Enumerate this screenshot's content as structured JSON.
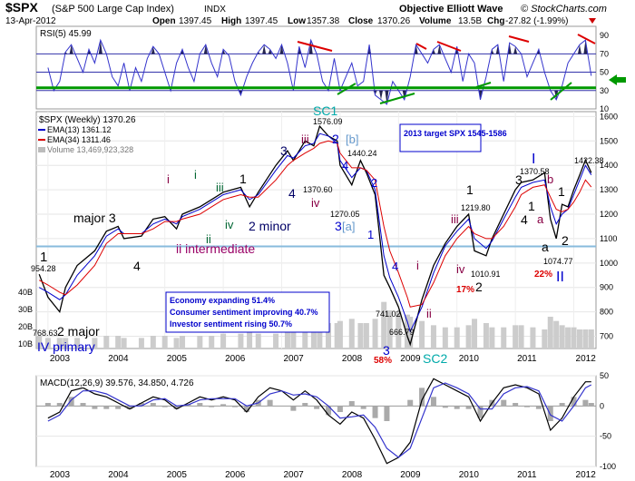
{
  "header": {
    "symbol": "$SPX",
    "name": "(S&P 500 Large Cap Index)",
    "exchange": "INDX",
    "brand": "Objective Elliott Wave",
    "source": "© StockCharts.com",
    "date": "13-Apr-2012",
    "quote": {
      "open_label": "Open",
      "open": "1397.45",
      "high_label": "High",
      "high": "1397.45",
      "low_label": "Low",
      "low": "1357.38",
      "close_label": "Close",
      "close": "1370.26",
      "volume_label": "Volume",
      "volume": "13.5B",
      "chg_label": "Chg",
      "chg": "-27.82 (-1.99%)"
    }
  },
  "chart_data": [
    {
      "type": "line",
      "panel": "rsi",
      "title": "RSI(5) 45.99",
      "ylim": [
        10,
        100
      ],
      "ticks": [
        90,
        70,
        50,
        30,
        10
      ],
      "levels": [
        70,
        50,
        30
      ],
      "green_line": 33,
      "x": [
        2003.0,
        2003.1,
        2003.2,
        2003.3,
        2003.4,
        2003.5,
        2003.6,
        2003.7,
        2003.8,
        2003.9,
        2004.0,
        2004.1,
        2004.2,
        2004.3,
        2004.4,
        2004.5,
        2004.6,
        2004.7,
        2004.8,
        2004.9,
        2005.0,
        2005.1,
        2005.2,
        2005.3,
        2005.4,
        2005.5,
        2005.6,
        2005.7,
        2005.8,
        2005.9,
        2006.0,
        2006.1,
        2006.2,
        2006.3,
        2006.4,
        2006.5,
        2006.6,
        2006.7,
        2006.8,
        2006.9,
        2007.0,
        2007.1,
        2007.2,
        2007.3,
        2007.4,
        2007.5,
        2007.6,
        2007.7,
        2007.8,
        2007.9,
        2008.0,
        2008.1,
        2008.2,
        2008.3,
        2008.4,
        2008.5,
        2008.6,
        2008.7,
        2008.8,
        2008.9,
        2009.0,
        2009.1,
        2009.2,
        2009.3,
        2009.4,
        2009.5,
        2009.6,
        2009.7,
        2009.8,
        2009.9,
        2010.0,
        2010.1,
        2010.2,
        2010.3,
        2010.4,
        2010.5,
        2010.6,
        2010.7,
        2010.8,
        2010.9,
        2011.0,
        2011.1,
        2011.2,
        2011.3,
        2011.4,
        2011.5,
        2011.6,
        2011.7,
        2011.8,
        2011.9,
        2012.0,
        2012.1,
        2012.2,
        2012.3
      ],
      "values": [
        55,
        30,
        40,
        72,
        80,
        65,
        50,
        75,
        60,
        85,
        70,
        45,
        35,
        60,
        30,
        55,
        40,
        65,
        78,
        70,
        50,
        30,
        60,
        75,
        55,
        40,
        70,
        80,
        60,
        45,
        75,
        68,
        40,
        25,
        45,
        60,
        72,
        80,
        75,
        65,
        80,
        60,
        30,
        78,
        55,
        85,
        70,
        40,
        30,
        65,
        30,
        45,
        60,
        35,
        40,
        80,
        25,
        20,
        15,
        40,
        30,
        20,
        45,
        80,
        70,
        60,
        75,
        80,
        65,
        50,
        78,
        40,
        70,
        60,
        20,
        45,
        75,
        80,
        40,
        82,
        78,
        70,
        45,
        60,
        75,
        50,
        30,
        20,
        35,
        60,
        70,
        80,
        85,
        46
      ]
    },
    {
      "type": "line",
      "panel": "price",
      "title": "$SPX (Weekly) 1370.26",
      "legend": [
        "EMA(13) 1361.12",
        "EMA(34) 1311.46",
        "Volume 13,469,923,328"
      ],
      "ylim": [
        650,
        1620
      ],
      "ticks": [
        1600,
        1500,
        1400,
        1300,
        1200,
        1100,
        1000,
        900,
        800,
        700
      ],
      "volume_ticks": [
        "40B",
        "30B",
        "20B",
        "10B"
      ],
      "hline": 1068,
      "x": [
        2002.85,
        2003.0,
        2003.2,
        2003.3,
        2003.5,
        2003.8,
        2004.0,
        2004.2,
        2004.3,
        2004.6,
        2004.8,
        2005.0,
        2005.2,
        2005.3,
        2005.6,
        2005.8,
        2006.0,
        2006.3,
        2006.45,
        2006.6,
        2006.9,
        2007.1,
        2007.2,
        2007.4,
        2007.55,
        2007.65,
        2007.8,
        2007.95,
        2008.0,
        2008.2,
        2008.35,
        2008.45,
        2008.6,
        2008.75,
        2008.85,
        2009.0,
        2009.15,
        2009.2,
        2009.4,
        2009.6,
        2009.8,
        2010.0,
        2010.2,
        2010.3,
        2010.5,
        2010.6,
        2010.8,
        2011.0,
        2011.1,
        2011.3,
        2011.5,
        2011.6,
        2011.7,
        2011.8,
        2011.9,
        2012.0,
        2012.1,
        2012.2,
        2012.3
      ],
      "values": [
        954,
        860,
        800,
        900,
        990,
        1050,
        1130,
        1150,
        1100,
        1110,
        1180,
        1190,
        1140,
        1200,
        1230,
        1260,
        1290,
        1310,
        1230,
        1290,
        1400,
        1460,
        1420,
        1500,
        1480,
        1560,
        1520,
        1500,
        1400,
        1320,
        1420,
        1370,
        1280,
        950,
        900,
        820,
        700,
        667,
        850,
        990,
        1080,
        1150,
        1200,
        1050,
        1030,
        1100,
        1200,
        1300,
        1330,
        1340,
        1370,
        1180,
        1100,
        1240,
        1230,
        1300,
        1360,
        1422,
        1370
      ],
      "ema13": [
        900,
        880,
        850,
        870,
        950,
        1030,
        1110,
        1140,
        1120,
        1120,
        1160,
        1180,
        1160,
        1190,
        1220,
        1250,
        1280,
        1300,
        1260,
        1280,
        1380,
        1440,
        1430,
        1480,
        1490,
        1530,
        1520,
        1490,
        1420,
        1350,
        1390,
        1380,
        1300,
        1030,
        940,
        860,
        760,
        720,
        820,
        960,
        1070,
        1130,
        1180,
        1100,
        1060,
        1090,
        1180,
        1270,
        1310,
        1330,
        1340,
        1230,
        1160,
        1200,
        1220,
        1280,
        1340,
        1400,
        1361
      ],
      "ema34": [
        930,
        910,
        880,
        870,
        910,
        990,
        1080,
        1120,
        1120,
        1120,
        1140,
        1170,
        1170,
        1180,
        1200,
        1230,
        1260,
        1280,
        1270,
        1270,
        1340,
        1400,
        1420,
        1450,
        1470,
        1490,
        1500,
        1490,
        1450,
        1390,
        1390,
        1380,
        1340,
        1150,
        1050,
        960,
        860,
        820,
        830,
        920,
        1030,
        1100,
        1150,
        1120,
        1100,
        1100,
        1150,
        1230,
        1280,
        1310,
        1320,
        1270,
        1220,
        1210,
        1220,
        1250,
        1290,
        1340,
        1311
      ],
      "volume": [
        6,
        5,
        5,
        5,
        5,
        5,
        6,
        6,
        5,
        5,
        6,
        6,
        5,
        6,
        6,
        6,
        7,
        7,
        8,
        7,
        7,
        9,
        8,
        9,
        10,
        11,
        12,
        12,
        13,
        14,
        12,
        12,
        14,
        22,
        18,
        17,
        16,
        15,
        13,
        11,
        10,
        10,
        11,
        14,
        12,
        10,
        10,
        11,
        11,
        10,
        9,
        15,
        13,
        11,
        10,
        10,
        9,
        9,
        9
      ],
      "price_labels": [
        "954.28",
        "768.63",
        "1576.09",
        "1440.24",
        "1370.60",
        "1270.05",
        "741.02",
        "666.79",
        "1219.80",
        "1010.91",
        "1370.58",
        "1074.77",
        "1422.38"
      ],
      "wave_labels": [
        "1",
        "2 major",
        "IV primary",
        "major 3",
        "4",
        "ii intermediate",
        "i",
        "i",
        "ii",
        "iii",
        "iv",
        "1",
        "2 minor",
        "3",
        "4",
        "iii",
        "iv",
        "SC1",
        "2",
        "[b]",
        "4",
        "3",
        "[a]",
        "2",
        "1",
        "4",
        "3",
        "SC2",
        "i",
        "ii",
        "iii",
        "iv",
        "1",
        "2",
        "3",
        "4",
        "1",
        "I",
        "b",
        "a",
        "1",
        "a",
        "2",
        "II",
        "58%",
        "17%",
        "22%"
      ],
      "annotations": [
        "2013 target SPX 1545-1586",
        "Economy expanding 51.4%",
        "Consumer sentiment improving 40.7%",
        "Investor sentiment rising 50.7%"
      ],
      "x_ticks": [
        "2003",
        "2004",
        "2005",
        "2006",
        "2007",
        "2008",
        "2009",
        "2010",
        "2011",
        "2012"
      ]
    },
    {
      "type": "line",
      "panel": "macd",
      "title": "MACD(12,26,9) 39.576, 34.850, 4.726",
      "ylim": [
        -100,
        50
      ],
      "ticks": [
        50,
        0,
        -50,
        -100
      ],
      "x": [
        2003.0,
        2003.2,
        2003.4,
        2003.6,
        2003.8,
        2004.0,
        2004.2,
        2004.4,
        2004.6,
        2004.8,
        2005.0,
        2005.2,
        2005.4,
        2005.6,
        2005.8,
        2006.0,
        2006.2,
        2006.4,
        2006.6,
        2006.8,
        2007.0,
        2007.2,
        2007.4,
        2007.6,
        2007.8,
        2008.0,
        2008.2,
        2008.4,
        2008.6,
        2008.8,
        2009.0,
        2009.2,
        2009.4,
        2009.6,
        2009.8,
        2010.0,
        2010.2,
        2010.4,
        2010.6,
        2010.8,
        2011.0,
        2011.2,
        2011.4,
        2011.6,
        2011.8,
        2012.0,
        2012.2,
        2012.3
      ],
      "macd": [
        -20,
        -10,
        25,
        30,
        20,
        15,
        5,
        -5,
        5,
        15,
        10,
        -5,
        5,
        15,
        10,
        15,
        10,
        -10,
        15,
        30,
        25,
        10,
        25,
        10,
        -15,
        -30,
        -10,
        -20,
        -55,
        -95,
        -85,
        -60,
        10,
        45,
        35,
        25,
        15,
        -25,
        5,
        30,
        35,
        30,
        20,
        -40,
        -20,
        15,
        40,
        40
      ],
      "signal": [
        -25,
        -15,
        10,
        25,
        25,
        20,
        10,
        0,
        0,
        10,
        12,
        0,
        2,
        10,
        12,
        12,
        12,
        0,
        5,
        20,
        25,
        18,
        20,
        15,
        0,
        -20,
        -18,
        -15,
        -35,
        -70,
        -85,
        -70,
        -20,
        30,
        38,
        30,
        20,
        -5,
        -5,
        20,
        30,
        32,
        25,
        -15,
        -25,
        0,
        30,
        35
      ],
      "x_ticks": [
        "2003",
        "2004",
        "2005",
        "2006",
        "2007",
        "2008",
        "2009",
        "2010",
        "2011",
        "2012"
      ]
    }
  ]
}
